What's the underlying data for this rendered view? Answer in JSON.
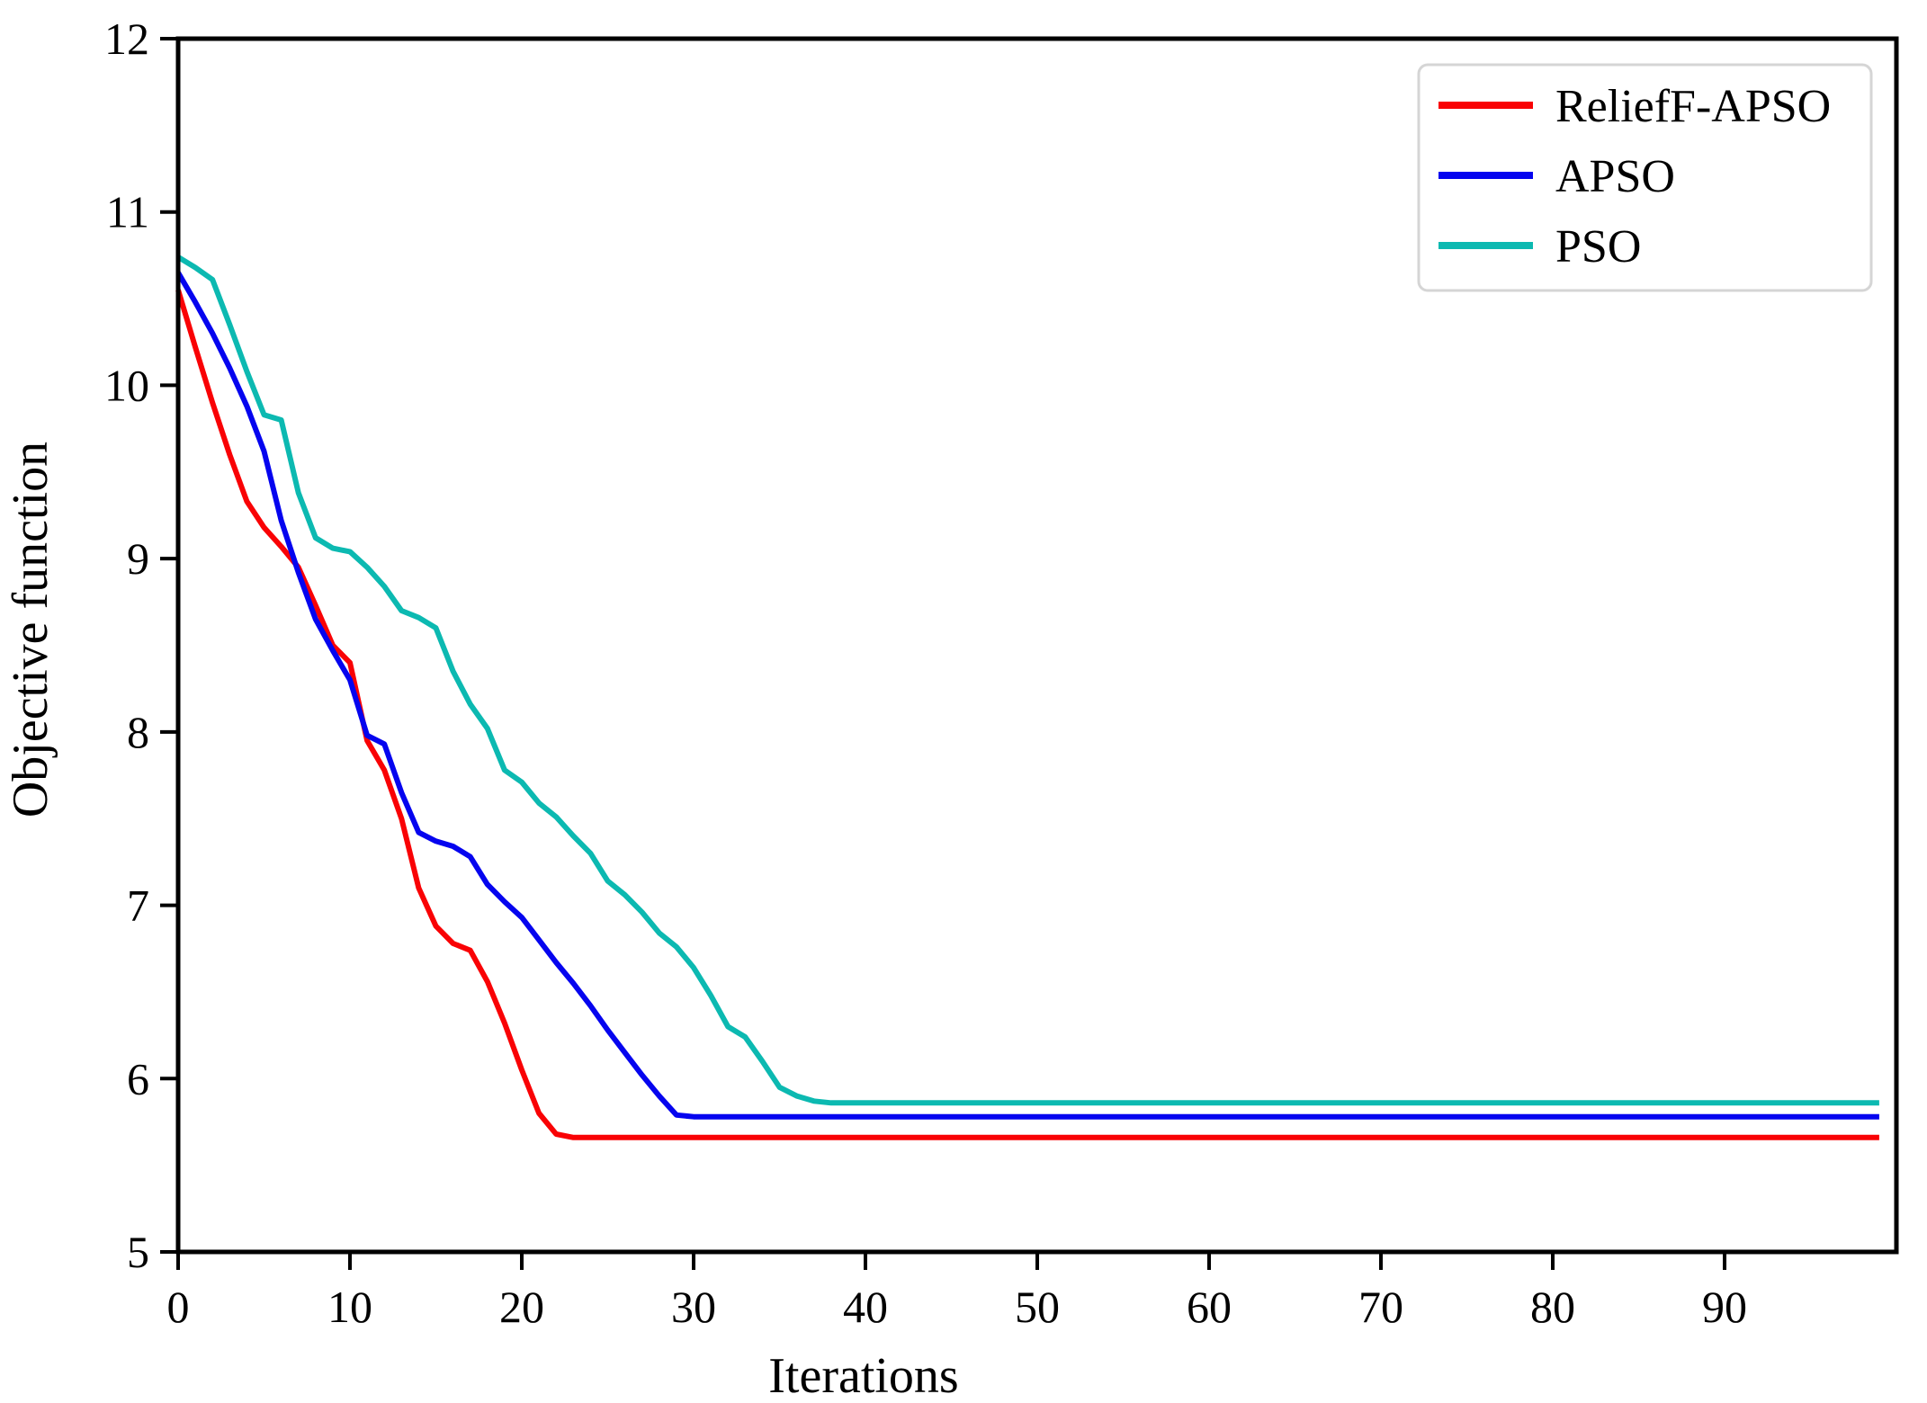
{
  "chart_data": {
    "type": "line",
    "title": "",
    "xlabel": "Iterations",
    "ylabel": "Objective function",
    "xlim": [
      0,
      100
    ],
    "ylim": [
      5,
      12
    ],
    "xticks": [
      0,
      10,
      20,
      30,
      40,
      50,
      60,
      70,
      80,
      90
    ],
    "yticks": [
      5,
      6,
      7,
      8,
      9,
      10,
      11,
      12
    ],
    "grid": false,
    "legend_position": "upper right",
    "x_step": 1,
    "series": [
      {
        "name": "ReliefF-APSO",
        "color": "#f90205",
        "final_value": 5.66,
        "values": [
          10.55,
          10.22,
          9.9,
          9.6,
          9.33,
          9.18,
          9.07,
          8.95,
          8.73,
          8.5,
          8.4,
          7.95,
          7.78,
          7.5,
          7.1,
          6.88,
          6.78,
          6.74,
          6.56,
          6.32,
          6.05,
          5.8,
          5.68,
          5.66,
          5.66,
          5.66,
          5.66,
          5.66,
          5.66,
          5.66,
          5.66,
          5.66,
          5.66,
          5.66,
          5.66,
          5.66,
          5.66,
          5.66,
          5.66,
          5.66,
          5.66,
          5.66,
          5.66,
          5.66,
          5.66,
          5.66,
          5.66,
          5.66,
          5.66,
          5.66,
          5.66,
          5.66,
          5.66,
          5.66,
          5.66,
          5.66,
          5.66,
          5.66,
          5.66,
          5.66,
          5.66,
          5.66,
          5.66,
          5.66,
          5.66,
          5.66,
          5.66,
          5.66,
          5.66,
          5.66,
          5.66,
          5.66,
          5.66,
          5.66,
          5.66,
          5.66,
          5.66,
          5.66,
          5.66,
          5.66,
          5.66,
          5.66,
          5.66,
          5.66,
          5.66,
          5.66,
          5.66,
          5.66,
          5.66,
          5.66,
          5.66,
          5.66,
          5.66,
          5.66,
          5.66,
          5.66,
          5.66,
          5.66,
          5.66,
          5.66
        ]
      },
      {
        "name": "APSO",
        "color": "#0504ef",
        "final_value": 5.78,
        "values": [
          10.65,
          10.48,
          10.3,
          10.1,
          9.88,
          9.62,
          9.22,
          8.92,
          8.65,
          8.47,
          8.3,
          7.98,
          7.93,
          7.65,
          7.42,
          7.37,
          7.34,
          7.28,
          7.12,
          7.02,
          6.93,
          6.8,
          6.67,
          6.55,
          6.42,
          6.28,
          6.15,
          6.02,
          5.9,
          5.79,
          5.78,
          5.78,
          5.78,
          5.78,
          5.78,
          5.78,
          5.78,
          5.78,
          5.78,
          5.78,
          5.78,
          5.78,
          5.78,
          5.78,
          5.78,
          5.78,
          5.78,
          5.78,
          5.78,
          5.78,
          5.78,
          5.78,
          5.78,
          5.78,
          5.78,
          5.78,
          5.78,
          5.78,
          5.78,
          5.78,
          5.78,
          5.78,
          5.78,
          5.78,
          5.78,
          5.78,
          5.78,
          5.78,
          5.78,
          5.78,
          5.78,
          5.78,
          5.78,
          5.78,
          5.78,
          5.78,
          5.78,
          5.78,
          5.78,
          5.78,
          5.78,
          5.78,
          5.78,
          5.78,
          5.78,
          5.78,
          5.78,
          5.78,
          5.78,
          5.78,
          5.78,
          5.78,
          5.78,
          5.78,
          5.78,
          5.78,
          5.78,
          5.78,
          5.78,
          5.78
        ]
      },
      {
        "name": "PSO",
        "color": "#0cb9b1",
        "final_value": 5.86,
        "values": [
          10.74,
          10.68,
          10.61,
          10.35,
          10.08,
          9.83,
          9.8,
          9.38,
          9.12,
          9.06,
          9.04,
          8.95,
          8.84,
          8.7,
          8.66,
          8.6,
          8.35,
          8.16,
          8.02,
          7.78,
          7.71,
          7.59,
          7.51,
          7.4,
          7.3,
          7.14,
          7.06,
          6.96,
          6.84,
          6.76,
          6.64,
          6.48,
          6.3,
          6.24,
          6.1,
          5.95,
          5.9,
          5.87,
          5.86,
          5.86,
          5.86,
          5.86,
          5.86,
          5.86,
          5.86,
          5.86,
          5.86,
          5.86,
          5.86,
          5.86,
          5.86,
          5.86,
          5.86,
          5.86,
          5.86,
          5.86,
          5.86,
          5.86,
          5.86,
          5.86,
          5.86,
          5.86,
          5.86,
          5.86,
          5.86,
          5.86,
          5.86,
          5.86,
          5.86,
          5.86,
          5.86,
          5.86,
          5.86,
          5.86,
          5.86,
          5.86,
          5.86,
          5.86,
          5.86,
          5.86,
          5.86,
          5.86,
          5.86,
          5.86,
          5.86,
          5.86,
          5.86,
          5.86,
          5.86,
          5.86,
          5.86,
          5.86,
          5.86,
          5.86,
          5.86,
          5.86,
          5.86,
          5.86,
          5.86,
          5.86
        ]
      }
    ],
    "legend": {
      "labels": [
        "ReliefF-APSO",
        "APSO",
        "PSO"
      ],
      "border_color": "#d5d5d5",
      "background": "#ffffff"
    },
    "frame_color": "#000000",
    "background": "#ffffff"
  }
}
